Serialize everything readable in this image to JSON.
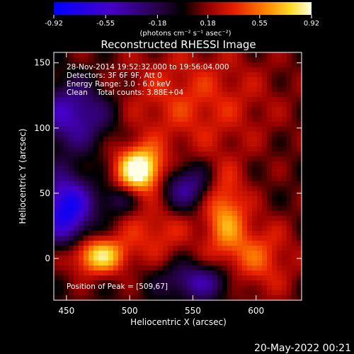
{
  "colorbar": {
    "ticks": [
      "-0.92",
      "-0.55",
      "-0.18",
      "0.18",
      "0.55",
      "0.92"
    ],
    "tick_values": [
      -0.92,
      -0.55,
      -0.18,
      0.18,
      0.55,
      0.92
    ],
    "min": -0.92,
    "max": 0.92,
    "units": "(photons cm⁻² s⁻¹ asec⁻²)"
  },
  "chart_data": {
    "type": "heatmap",
    "title": "Reconstructed RHESSI Image",
    "xlabel": "Heliocentric X (arcsec)",
    "ylabel": "Heliocentric Y (arcsec)",
    "xlim": [
      440,
      636
    ],
    "ylim": [
      -32,
      158
    ],
    "xticks": [
      450,
      500,
      550,
      600
    ],
    "yticks": [
      0,
      50,
      100,
      150
    ],
    "color_scale": "rhessi-fire",
    "info_lines": [
      "28-Nov-2014 19:52:32.000 to 19:56:04.000",
      "Detectors: 3F 6F 9F, Att 0",
      "Energy Range: 3.0 - 6.0 keV",
      "Clean    Total counts: 3.88E+04"
    ],
    "peak_label": "Position of Peak = [509,67]",
    "peak": [
      509,
      67
    ],
    "sources": [
      {
        "x": 508,
        "y": 68,
        "sx": 13,
        "sy": 12,
        "amp": 0.95
      },
      {
        "x": 475,
        "y": 2,
        "sx": 16,
        "sy": 10,
        "amp": 0.72
      },
      {
        "x": 575,
        "y": 35,
        "sx": 12,
        "sy": 22,
        "amp": 0.5
      },
      {
        "x": 600,
        "y": 0,
        "sx": 20,
        "sy": 20,
        "amp": 0.38
      },
      {
        "x": 548,
        "y": 120,
        "sx": 45,
        "sy": 30,
        "amp": 0.3
      },
      {
        "x": 520,
        "y": 20,
        "sx": 20,
        "sy": 15,
        "amp": 0.3
      },
      {
        "x": 450,
        "y": 38,
        "sx": 14,
        "sy": 18,
        "amp": -0.92
      },
      {
        "x": 455,
        "y": 110,
        "sx": 22,
        "sy": 18,
        "amp": -0.6
      },
      {
        "x": 545,
        "y": 55,
        "sx": 14,
        "sy": 12,
        "amp": -0.5
      },
      {
        "x": 555,
        "y": -18,
        "sx": 20,
        "sy": 10,
        "amp": -0.5
      },
      {
        "x": 490,
        "y": 45,
        "sx": 10,
        "sy": 8,
        "amp": -0.3
      }
    ]
  },
  "footer_date": "20-May-2022 00:21"
}
